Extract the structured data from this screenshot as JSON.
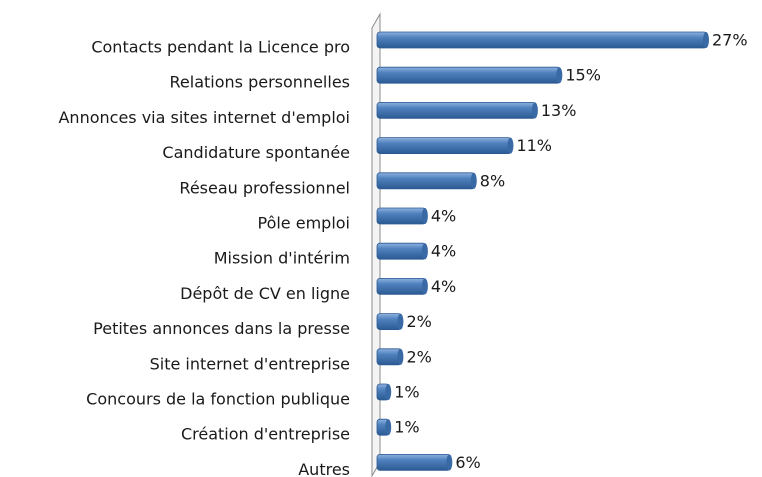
{
  "chart_data": {
    "type": "bar",
    "orientation": "horizontal",
    "categories": [
      "Contacts pendant la Licence pro",
      "Relations personnelles",
      "Annonces via sites internet d'emploi",
      "Candidature spontanée",
      "Réseau professionnel",
      "Pôle emploi",
      "Mission d'intérim",
      "Dépôt de CV en ligne",
      "Petites annonces dans la presse",
      "Site internet d'entreprise",
      "Concours de la fonction publique",
      "Création d'entreprise",
      "Autres"
    ],
    "values": [
      27,
      15,
      13,
      11,
      8,
      4,
      4,
      4,
      2,
      2,
      1,
      1,
      6
    ],
    "value_labels": [
      "27%",
      "15%",
      "13%",
      "11%",
      "8%",
      "4%",
      "4%",
      "4%",
      "2%",
      "2%",
      "1%",
      "1%",
      "6%"
    ],
    "color": "#4f81bd"
  }
}
